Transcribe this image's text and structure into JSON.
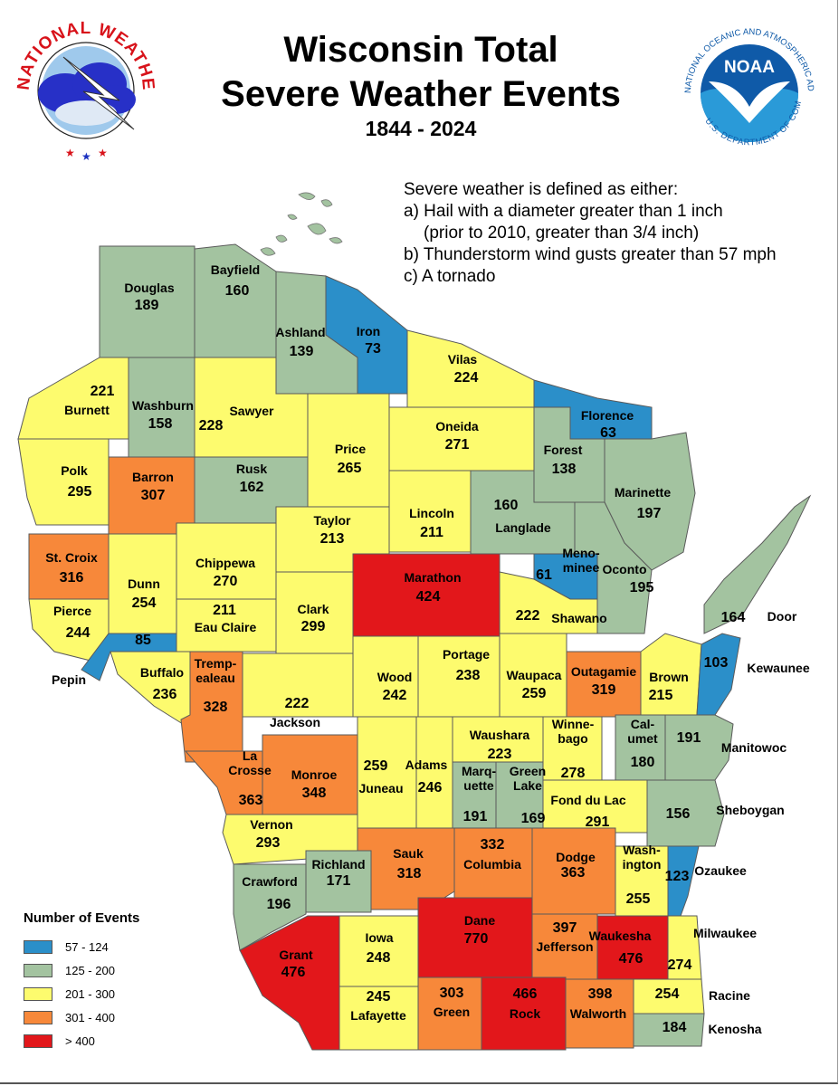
{
  "title_line1": "Wisconsin Total",
  "title_line2": "Severe Weather Events",
  "years": "1844 - 2024",
  "nws_logo_text": "NATIONAL WEATHER SERVICE",
  "noaa_logo_text": "NATIONAL OCEANIC AND ATMOSPHERIC ADMINISTRATION · U.S. DEPARTMENT OF COMMERCE",
  "noaa_label": "NOAA",
  "definition": {
    "intro": "Severe weather is defined as either:",
    "a1": "a) Hail with a diameter greater than 1 inch",
    "a2": "(prior to 2010, greater than 3/4 inch)",
    "b": "b) Thunderstorm wind gusts greater than 57 mph",
    "c": "c) A tornado"
  },
  "legend": {
    "title": "Number of Events",
    "items": [
      {
        "label": "57 - 124",
        "color": "#2b8fc9"
      },
      {
        "label": "125 - 200",
        "color": "#a3c3a0"
      },
      {
        "label": "201 - 300",
        "color": "#fdfb6e"
      },
      {
        "label": "301 - 400",
        "color": "#f7883a"
      },
      {
        "label": "> 400",
        "color": "#e2171b"
      }
    ]
  },
  "counties": [
    {
      "name": "Douglas",
      "value": 189
    },
    {
      "name": "Bayfield",
      "value": 160
    },
    {
      "name": "Ashland",
      "value": 139
    },
    {
      "name": "Iron",
      "value": 73
    },
    {
      "name": "Vilas",
      "value": 224
    },
    {
      "name": "Burnett",
      "value": 221
    },
    {
      "name": "Washburn",
      "value": 158
    },
    {
      "name": "Sawyer",
      "value": 228
    },
    {
      "name": "Price",
      "value": 265
    },
    {
      "name": "Oneida",
      "value": 271
    },
    {
      "name": "Florence",
      "value": 63
    },
    {
      "name": "Forest",
      "value": 138
    },
    {
      "name": "Polk",
      "value": 295
    },
    {
      "name": "Barron",
      "value": 307
    },
    {
      "name": "Rusk",
      "value": 162
    },
    {
      "name": "Marinette",
      "value": 197
    },
    {
      "name": "Lincoln",
      "value": 211
    },
    {
      "name": "Langlade",
      "value": 160
    },
    {
      "name": "Taylor",
      "value": 213
    },
    {
      "name": "St. Croix",
      "value": 316
    },
    {
      "name": "Dunn",
      "value": 254
    },
    {
      "name": "Chippewa",
      "value": 270
    },
    {
      "name": "Marathon",
      "value": 424
    },
    {
      "name": "Menominee",
      "value": 61
    },
    {
      "name": "Oconto",
      "value": 195
    },
    {
      "name": "Pierce",
      "value": 244
    },
    {
      "name": "Eau Claire",
      "value": 211
    },
    {
      "name": "Clark",
      "value": 299
    },
    {
      "name": "Shawano",
      "value": 222
    },
    {
      "name": "Door",
      "value": 164
    },
    {
      "name": "Pepin",
      "value": 85
    },
    {
      "name": "Buffalo",
      "value": 236
    },
    {
      "name": "Trempealeau",
      "value": 328
    },
    {
      "name": "Wood",
      "value": 242
    },
    {
      "name": "Portage",
      "value": 238
    },
    {
      "name": "Waupaca",
      "value": 259
    },
    {
      "name": "Outagamie",
      "value": 319
    },
    {
      "name": "Brown",
      "value": 215
    },
    {
      "name": "Kewaunee",
      "value": 103
    },
    {
      "name": "Jackson",
      "value": 222
    },
    {
      "name": "Waushara",
      "value": 223
    },
    {
      "name": "Winnebago",
      "value": 278
    },
    {
      "name": "Calumet",
      "value": 180
    },
    {
      "name": "Manitowoc",
      "value": 191
    },
    {
      "name": "La Crosse",
      "value": 363
    },
    {
      "name": "Monroe",
      "value": 348
    },
    {
      "name": "Juneau",
      "value": 259
    },
    {
      "name": "Adams",
      "value": 246
    },
    {
      "name": "Marquette",
      "value": 191
    },
    {
      "name": "Green Lake",
      "value": 169
    },
    {
      "name": "Fond du Lac",
      "value": 291
    },
    {
      "name": "Sheboygan",
      "value": 156
    },
    {
      "name": "Vernon",
      "value": 293
    },
    {
      "name": "Sauk",
      "value": 318
    },
    {
      "name": "Columbia",
      "value": 332
    },
    {
      "name": "Dodge",
      "value": 363
    },
    {
      "name": "Washington",
      "value": 255
    },
    {
      "name": "Ozaukee",
      "value": 123
    },
    {
      "name": "Richland",
      "value": 171
    },
    {
      "name": "Crawford",
      "value": 196
    },
    {
      "name": "Grant",
      "value": 476
    },
    {
      "name": "Iowa",
      "value": 248
    },
    {
      "name": "Dane",
      "value": 770
    },
    {
      "name": "Jefferson",
      "value": 397
    },
    {
      "name": "Waukesha",
      "value": 476
    },
    {
      "name": "Milwaukee",
      "value": 274
    },
    {
      "name": "Lafayette",
      "value": 245
    },
    {
      "name": "Green",
      "value": 303
    },
    {
      "name": "Rock",
      "value": 466
    },
    {
      "name": "Walworth",
      "value": 398
    },
    {
      "name": "Racine",
      "value": 254
    },
    {
      "name": "Kenosha",
      "value": 184
    }
  ]
}
